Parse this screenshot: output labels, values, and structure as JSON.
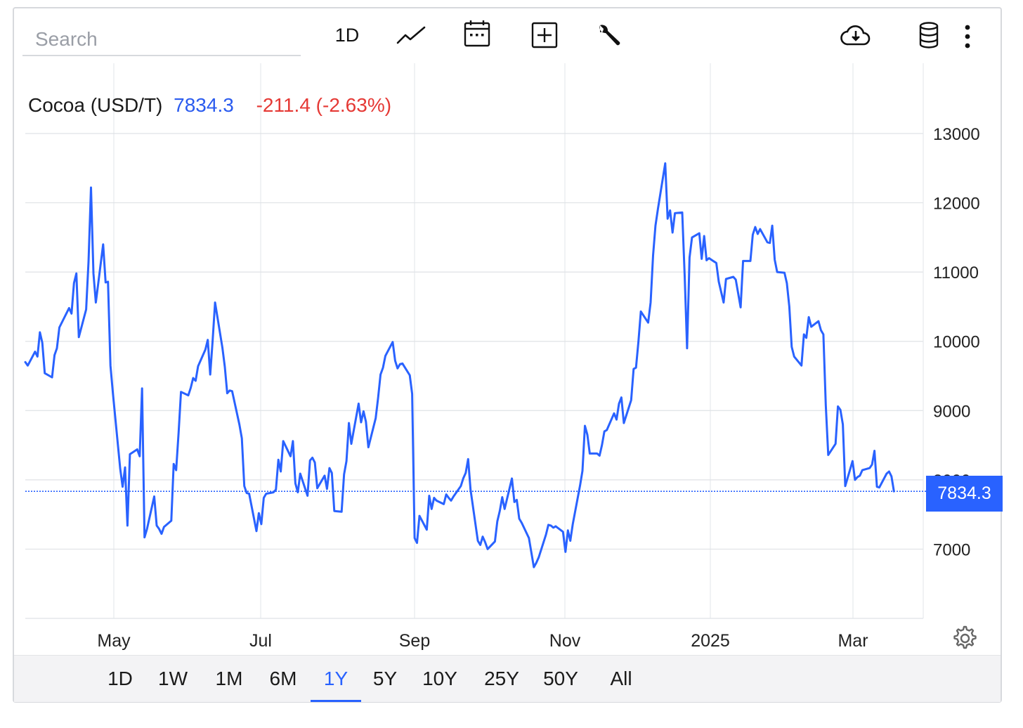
{
  "toolbar": {
    "search_placeholder": "Search",
    "interval_label": "1D",
    "icons": [
      "line-chart-icon",
      "calendar-icon",
      "add-indicator-icon",
      "wrench-icon",
      "download-cloud-icon",
      "database-icon",
      "more-vertical-icon"
    ]
  },
  "legend": {
    "name": "Cocoa (USD/T)",
    "price": "7834.3",
    "change": "-211.4 (-2.63%)",
    "price_color": "#2a5bef",
    "change_color": "#e53935"
  },
  "last_price_tag": "7834.3",
  "ranges": {
    "items": [
      "1D",
      "1W",
      "1M",
      "6M",
      "1Y",
      "5Y",
      "10Y",
      "25Y",
      "50Y",
      "All"
    ],
    "active": "1Y"
  },
  "chart_data": {
    "type": "line",
    "title": "Cocoa (USD/T)",
    "line_color": "#2962ff",
    "last_value": 7834.3,
    "x_ticks": [
      "May",
      "Jul",
      "Sep",
      "Nov",
      "2025",
      "Mar"
    ],
    "x_range": [
      "2024-03-14",
      "2025-03-14"
    ],
    "y_ticks": [
      7000,
      8000,
      9000,
      10000,
      11000,
      12000,
      13000
    ],
    "ylim": [
      6000,
      13000
    ],
    "grid": true,
    "series": [
      {
        "values": [
          [
            "2024-03-14",
            9700
          ],
          [
            "2024-03-15",
            9650
          ],
          [
            "2024-03-18",
            9850
          ],
          [
            "2024-03-19",
            9780
          ],
          [
            "2024-03-20",
            10130
          ],
          [
            "2024-03-21",
            9980
          ],
          [
            "2024-03-22",
            9540
          ],
          [
            "2024-03-25",
            9480
          ],
          [
            "2024-03-26",
            9800
          ],
          [
            "2024-03-27",
            9900
          ],
          [
            "2024-03-28",
            10200
          ],
          [
            "2024-04-01",
            10480
          ],
          [
            "2024-04-02",
            10400
          ],
          [
            "2024-04-03",
            10840
          ],
          [
            "2024-04-04",
            10980
          ],
          [
            "2024-04-05",
            10060
          ],
          [
            "2024-04-08",
            10460
          ],
          [
            "2024-04-09",
            11150
          ],
          [
            "2024-04-10",
            12220
          ],
          [
            "2024-04-11",
            10980
          ],
          [
            "2024-04-12",
            10560
          ],
          [
            "2024-04-15",
            11400
          ],
          [
            "2024-04-16",
            10850
          ],
          [
            "2024-04-17",
            10860
          ],
          [
            "2024-04-18",
            9650
          ],
          [
            "2024-04-19",
            9250
          ],
          [
            "2024-04-22",
            8160
          ],
          [
            "2024-04-23",
            7900
          ],
          [
            "2024-04-24",
            8180
          ],
          [
            "2024-04-25",
            7340
          ],
          [
            "2024-04-26",
            8370
          ],
          [
            "2024-04-29",
            8440
          ],
          [
            "2024-04-30",
            8340
          ],
          [
            "2024-05-01",
            9320
          ],
          [
            "2024-05-02",
            7170
          ],
          [
            "2024-05-03",
            7290
          ],
          [
            "2024-05-06",
            7760
          ],
          [
            "2024-05-07",
            7340
          ],
          [
            "2024-05-08",
            7290
          ],
          [
            "2024-05-09",
            7220
          ],
          [
            "2024-05-10",
            7320
          ],
          [
            "2024-05-13",
            7410
          ],
          [
            "2024-05-14",
            8230
          ],
          [
            "2024-05-15",
            8140
          ],
          [
            "2024-05-16",
            8680
          ],
          [
            "2024-05-17",
            9270
          ],
          [
            "2024-05-20",
            9220
          ],
          [
            "2024-05-21",
            9330
          ],
          [
            "2024-05-22",
            9470
          ],
          [
            "2024-05-23",
            9430
          ],
          [
            "2024-05-24",
            9640
          ],
          [
            "2024-05-27",
            9880
          ],
          [
            "2024-05-28",
            10020
          ],
          [
            "2024-05-29",
            9520
          ],
          [
            "2024-05-30",
            10020
          ],
          [
            "2024-05-31",
            10560
          ],
          [
            "2024-06-03",
            9910
          ],
          [
            "2024-06-04",
            9630
          ],
          [
            "2024-06-05",
            9250
          ],
          [
            "2024-06-06",
            9290
          ],
          [
            "2024-06-07",
            9280
          ],
          [
            "2024-06-10",
            8800
          ],
          [
            "2024-06-11",
            8600
          ],
          [
            "2024-06-12",
            7910
          ],
          [
            "2024-06-13",
            7810
          ],
          [
            "2024-06-14",
            7800
          ],
          [
            "2024-06-17",
            7260
          ],
          [
            "2024-06-18",
            7520
          ],
          [
            "2024-06-19",
            7360
          ],
          [
            "2024-06-20",
            7740
          ],
          [
            "2024-06-21",
            7800
          ],
          [
            "2024-06-24",
            7820
          ],
          [
            "2024-06-25",
            7860
          ],
          [
            "2024-06-26",
            8290
          ],
          [
            "2024-06-27",
            8120
          ],
          [
            "2024-06-28",
            8560
          ],
          [
            "2024-07-01",
            8340
          ],
          [
            "2024-07-02",
            8560
          ],
          [
            "2024-07-03",
            7950
          ],
          [
            "2024-07-04",
            7820
          ],
          [
            "2024-07-05",
            8090
          ],
          [
            "2024-07-08",
            7770
          ],
          [
            "2024-07-09",
            8280
          ],
          [
            "2024-07-10",
            8320
          ],
          [
            "2024-07-11",
            8250
          ],
          [
            "2024-07-12",
            7880
          ],
          [
            "2024-07-15",
            8060
          ],
          [
            "2024-07-16",
            7870
          ],
          [
            "2024-07-17",
            8170
          ],
          [
            "2024-07-18",
            8100
          ],
          [
            "2024-07-19",
            7550
          ],
          [
            "2024-07-22",
            7540
          ],
          [
            "2024-07-23",
            8080
          ],
          [
            "2024-07-24",
            8270
          ],
          [
            "2024-07-25",
            8820
          ],
          [
            "2024-07-26",
            8520
          ],
          [
            "2024-07-29",
            9100
          ],
          [
            "2024-07-30",
            8830
          ],
          [
            "2024-07-31",
            8990
          ],
          [
            "2024-08-01",
            8840
          ],
          [
            "2024-08-02",
            8470
          ],
          [
            "2024-08-05",
            8890
          ],
          [
            "2024-08-06",
            9180
          ],
          [
            "2024-08-07",
            9520
          ],
          [
            "2024-08-08",
            9620
          ],
          [
            "2024-08-09",
            9790
          ],
          [
            "2024-08-12",
            9990
          ],
          [
            "2024-08-13",
            9720
          ],
          [
            "2024-08-14",
            9610
          ],
          [
            "2024-08-15",
            9670
          ],
          [
            "2024-08-16",
            9680
          ],
          [
            "2024-08-19",
            9510
          ],
          [
            "2024-08-20",
            9240
          ],
          [
            "2024-08-21",
            7160
          ],
          [
            "2024-08-22",
            7090
          ],
          [
            "2024-08-23",
            7480
          ],
          [
            "2024-08-26",
            7280
          ],
          [
            "2024-08-27",
            7770
          ],
          [
            "2024-08-28",
            7580
          ],
          [
            "2024-08-29",
            7740
          ],
          [
            "2024-08-30",
            7700
          ],
          [
            "2024-09-02",
            7650
          ],
          [
            "2024-09-03",
            7790
          ],
          [
            "2024-09-04",
            7740
          ],
          [
            "2024-09-05",
            7700
          ],
          [
            "2024-09-06",
            7760
          ],
          [
            "2024-09-09",
            7910
          ],
          [
            "2024-09-10",
            8020
          ],
          [
            "2024-09-11",
            8100
          ],
          [
            "2024-09-12",
            8300
          ],
          [
            "2024-09-13",
            7860
          ],
          [
            "2024-09-16",
            7120
          ],
          [
            "2024-09-17",
            7060
          ],
          [
            "2024-09-18",
            7180
          ],
          [
            "2024-09-19",
            7100
          ],
          [
            "2024-09-20",
            7000
          ],
          [
            "2024-09-23",
            7110
          ],
          [
            "2024-09-24",
            7400
          ],
          [
            "2024-09-25",
            7550
          ],
          [
            "2024-09-26",
            7750
          ],
          [
            "2024-09-27",
            7580
          ],
          [
            "2024-09-30",
            8020
          ],
          [
            "2024-10-01",
            7680
          ],
          [
            "2024-10-02",
            7710
          ],
          [
            "2024-10-03",
            7440
          ],
          [
            "2024-10-04",
            7380
          ],
          [
            "2024-10-07",
            7160
          ],
          [
            "2024-10-08",
            6950
          ],
          [
            "2024-10-09",
            6740
          ],
          [
            "2024-10-10",
            6800
          ],
          [
            "2024-10-11",
            6880
          ],
          [
            "2024-10-14",
            7210
          ],
          [
            "2024-10-15",
            7350
          ],
          [
            "2024-10-16",
            7340
          ],
          [
            "2024-10-17",
            7310
          ],
          [
            "2024-10-18",
            7330
          ],
          [
            "2024-10-21",
            7250
          ],
          [
            "2024-10-22",
            6960
          ],
          [
            "2024-10-23",
            7270
          ],
          [
            "2024-10-24",
            7120
          ],
          [
            "2024-10-25",
            7360
          ],
          [
            "2024-10-28",
            7920
          ],
          [
            "2024-10-29",
            8130
          ],
          [
            "2024-10-30",
            8780
          ],
          [
            "2024-10-31",
            8650
          ],
          [
            "2024-11-01",
            8380
          ],
          [
            "2024-11-04",
            8380
          ],
          [
            "2024-11-05",
            8350
          ],
          [
            "2024-11-06",
            8500
          ],
          [
            "2024-11-07",
            8700
          ],
          [
            "2024-11-08",
            8720
          ],
          [
            "2024-11-11",
            8960
          ],
          [
            "2024-11-12",
            8870
          ],
          [
            "2024-11-13",
            9100
          ],
          [
            "2024-11-14",
            9190
          ],
          [
            "2024-11-15",
            8820
          ],
          [
            "2024-11-18",
            9150
          ],
          [
            "2024-11-19",
            9600
          ],
          [
            "2024-11-20",
            9620
          ],
          [
            "2024-11-21",
            10000
          ],
          [
            "2024-11-22",
            10430
          ],
          [
            "2024-11-25",
            10270
          ],
          [
            "2024-11-26",
            10560
          ],
          [
            "2024-11-27",
            11240
          ],
          [
            "2024-11-28",
            11670
          ],
          [
            "2024-11-29",
            11910
          ],
          [
            "2024-12-02",
            12570
          ],
          [
            "2024-12-03",
            11770
          ],
          [
            "2024-12-04",
            11890
          ],
          [
            "2024-12-05",
            11570
          ],
          [
            "2024-12-06",
            11850
          ],
          [
            "2024-12-09",
            11860
          ],
          [
            "2024-12-10",
            10940
          ],
          [
            "2024-12-11",
            9900
          ],
          [
            "2024-12-12",
            11210
          ],
          [
            "2024-12-13",
            11500
          ],
          [
            "2024-12-16",
            11560
          ],
          [
            "2024-12-17",
            11190
          ],
          [
            "2024-12-18",
            11520
          ],
          [
            "2024-12-19",
            11170
          ],
          [
            "2024-12-20",
            11200
          ],
          [
            "2024-12-23",
            11130
          ],
          [
            "2024-12-24",
            10860
          ],
          [
            "2024-12-26",
            10560
          ],
          [
            "2024-12-27",
            10900
          ],
          [
            "2024-12-30",
            10930
          ],
          [
            "2024-12-31",
            10890
          ],
          [
            "2025-01-02",
            10490
          ],
          [
            "2025-01-03",
            11160
          ],
          [
            "2025-01-06",
            11160
          ],
          [
            "2025-01-07",
            11540
          ],
          [
            "2025-01-08",
            11650
          ],
          [
            "2025-01-09",
            11550
          ],
          [
            "2025-01-10",
            11620
          ],
          [
            "2025-01-13",
            11430
          ],
          [
            "2025-01-14",
            11420
          ],
          [
            "2025-01-15",
            11670
          ],
          [
            "2025-01-16",
            11180
          ],
          [
            "2025-01-17",
            11000
          ],
          [
            "2025-01-20",
            10990
          ],
          [
            "2025-01-21",
            10840
          ],
          [
            "2025-01-22",
            10500
          ],
          [
            "2025-01-23",
            9920
          ],
          [
            "2025-01-24",
            9780
          ],
          [
            "2025-01-27",
            9650
          ],
          [
            "2025-01-28",
            10100
          ],
          [
            "2025-01-29",
            10050
          ],
          [
            "2025-01-30",
            10350
          ],
          [
            "2025-01-31",
            10210
          ],
          [
            "2025-02-03",
            10290
          ],
          [
            "2025-02-04",
            10160
          ],
          [
            "2025-02-05",
            10100
          ],
          [
            "2025-02-06",
            9080
          ],
          [
            "2025-02-07",
            8360
          ],
          [
            "2025-02-10",
            8520
          ],
          [
            "2025-02-11",
            9060
          ],
          [
            "2025-02-12",
            9010
          ],
          [
            "2025-02-13",
            8800
          ],
          [
            "2025-02-14",
            7910
          ],
          [
            "2025-02-17",
            8270
          ],
          [
            "2025-02-18",
            8000
          ],
          [
            "2025-02-19",
            8040
          ],
          [
            "2025-02-20",
            8060
          ],
          [
            "2025-02-21",
            8140
          ],
          [
            "2025-02-24",
            8170
          ],
          [
            "2025-02-25",
            8220
          ],
          [
            "2025-02-26",
            8420
          ],
          [
            "2025-02-27",
            7900
          ],
          [
            "2025-02-28",
            7890
          ],
          [
            "2025-03-03",
            8090
          ],
          [
            "2025-03-04",
            8120
          ],
          [
            "2025-03-05",
            8050
          ],
          [
            "2025-03-06",
            7834.3
          ]
        ]
      }
    ]
  }
}
